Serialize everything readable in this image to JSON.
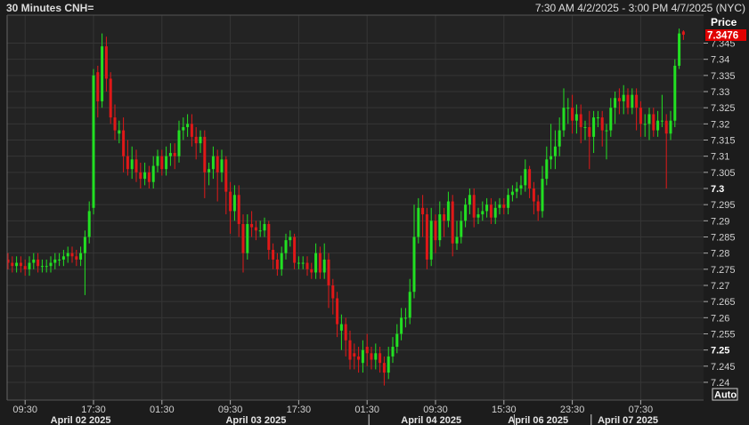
{
  "header": {
    "title": "30 Minutes CNH=",
    "range": "7:30 AM 4/2/2025 - 3:00 PM 4/7/2025 (NYC)"
  },
  "axis": {
    "price_label": "Price",
    "auto_button": "Auto",
    "last_price": "7.3476"
  },
  "colors": {
    "up": "#22e022",
    "down": "#e01818",
    "last_price_bg": "#e00000"
  },
  "chart_data": {
    "type": "candlestick",
    "title": "30 Minutes CNH=",
    "ylabel": "Price",
    "ylim": [
      7.2365,
      7.352
    ],
    "grid": true,
    "y_ticks": [
      "7.345",
      "7.34",
      "7.335",
      "7.33",
      "7.325",
      "7.32",
      "7.315",
      "7.31",
      "7.305",
      "7.3",
      "7.295",
      "7.29",
      "7.285",
      "7.28",
      "7.275",
      "7.27",
      "7.265",
      "7.26",
      "7.255",
      "7.25",
      "7.245",
      "7.24"
    ],
    "y_ticks_bold": [
      "7.3",
      "7.25"
    ],
    "x_ticks": [
      {
        "label": "09:30",
        "index": 4
      },
      {
        "label": "17:30",
        "index": 20
      },
      {
        "label": "01:30",
        "index": 36
      },
      {
        "label": "09:30",
        "index": 52
      },
      {
        "label": "17:30",
        "index": 68
      },
      {
        "label": "01:30",
        "index": 84
      },
      {
        "label": "09:30",
        "index": 100
      },
      {
        "label": "15:30",
        "index": 116
      },
      {
        "label": "23:30",
        "index": 132
      },
      {
        "label": "07:30",
        "index": 148
      }
    ],
    "date_labels": [
      {
        "label": "April 02 2025",
        "index": 17
      },
      {
        "label": "April 03 2025",
        "index": 58
      },
      {
        "label": "April 04 2025",
        "index": 99
      },
      {
        "label": "April 06 2025",
        "index": 124
      },
      {
        "label": "April 07 2025",
        "index": 145
      }
    ],
    "date_separators": [
      84,
      118,
      136
    ],
    "ohlc_columns": [
      "open",
      "high",
      "low",
      "close"
    ],
    "candles": [
      [
        7.278,
        7.28,
        7.275,
        7.277
      ],
      [
        7.277,
        7.279,
        7.274,
        7.276
      ],
      [
        7.276,
        7.279,
        7.274,
        7.277
      ],
      [
        7.277,
        7.279,
        7.274,
        7.276
      ],
      [
        7.276,
        7.278,
        7.273,
        7.275
      ],
      [
        7.275,
        7.279,
        7.273,
        7.277
      ],
      [
        7.277,
        7.28,
        7.275,
        7.278
      ],
      [
        7.278,
        7.28,
        7.274,
        7.276
      ],
      [
        7.276,
        7.278,
        7.274,
        7.276
      ],
      [
        7.276,
        7.278,
        7.274,
        7.276
      ],
      [
        7.276,
        7.279,
        7.274,
        7.277
      ],
      [
        7.277,
        7.28,
        7.275,
        7.278
      ],
      [
        7.278,
        7.28,
        7.276,
        7.278
      ],
      [
        7.278,
        7.281,
        7.276,
        7.279
      ],
      [
        7.279,
        7.282,
        7.277,
        7.28
      ],
      [
        7.28,
        7.282,
        7.277,
        7.279
      ],
      [
        7.279,
        7.281,
        7.276,
        7.278
      ],
      [
        7.278,
        7.282,
        7.276,
        7.28
      ],
      [
        7.28,
        7.287,
        7.267,
        7.285
      ],
      [
        7.285,
        7.296,
        7.283,
        7.293
      ],
      [
        7.294,
        7.337,
        7.292,
        7.335
      ],
      [
        7.336,
        7.338,
        7.322,
        7.327
      ],
      [
        7.327,
        7.348,
        7.325,
        7.344
      ],
      [
        7.344,
        7.347,
        7.33,
        7.334
      ],
      [
        7.334,
        7.336,
        7.32,
        7.322
      ],
      [
        7.322,
        7.326,
        7.315,
        7.318
      ],
      [
        7.317,
        7.321,
        7.314,
        7.318
      ],
      [
        7.318,
        7.322,
        7.305,
        7.31
      ],
      [
        7.31,
        7.315,
        7.304,
        7.306
      ],
      [
        7.306,
        7.313,
        7.303,
        7.309
      ],
      [
        7.309,
        7.312,
        7.302,
        7.305
      ],
      [
        7.305,
        7.308,
        7.3,
        7.303
      ],
      [
        7.303,
        7.308,
        7.301,
        7.305
      ],
      [
        7.305,
        7.307,
        7.3,
        7.302
      ],
      [
        7.302,
        7.31,
        7.3,
        7.307
      ],
      [
        7.307,
        7.312,
        7.305,
        7.31
      ],
      [
        7.31,
        7.312,
        7.304,
        7.306
      ],
      [
        7.306,
        7.313,
        7.304,
        7.31
      ],
      [
        7.31,
        7.314,
        7.307,
        7.311
      ],
      [
        7.311,
        7.314,
        7.306,
        7.31
      ],
      [
        7.31,
        7.321,
        7.308,
        7.318
      ],
      [
        7.318,
        7.322,
        7.315,
        7.319
      ],
      [
        7.319,
        7.323,
        7.316,
        7.32
      ],
      [
        7.32,
        7.323,
        7.313,
        7.316
      ],
      [
        7.316,
        7.319,
        7.309,
        7.314
      ],
      [
        7.314,
        7.318,
        7.311,
        7.316
      ],
      [
        7.316,
        7.318,
        7.297,
        7.305
      ],
      [
        7.305,
        7.308,
        7.301,
        7.306
      ],
      [
        7.306,
        7.313,
        7.303,
        7.31
      ],
      [
        7.31,
        7.312,
        7.296,
        7.305
      ],
      [
        7.305,
        7.312,
        7.302,
        7.309
      ],
      [
        7.309,
        7.31,
        7.292,
        7.299
      ],
      [
        7.299,
        7.302,
        7.286,
        7.293
      ],
      [
        7.293,
        7.301,
        7.29,
        7.298
      ],
      [
        7.298,
        7.301,
        7.285,
        7.289
      ],
      [
        7.289,
        7.292,
        7.274,
        7.28
      ],
      [
        7.28,
        7.292,
        7.278,
        7.289
      ],
      [
        7.289,
        7.293,
        7.285,
        7.288
      ],
      [
        7.288,
        7.29,
        7.284,
        7.287
      ],
      [
        7.287,
        7.29,
        7.285,
        7.287
      ],
      [
        7.287,
        7.291,
        7.285,
        7.289
      ],
      [
        7.289,
        7.29,
        7.278,
        7.281
      ],
      [
        7.281,
        7.283,
        7.275,
        7.278
      ],
      [
        7.278,
        7.28,
        7.273,
        7.275
      ],
      [
        7.275,
        7.282,
        7.273,
        7.28
      ],
      [
        7.28,
        7.286,
        7.278,
        7.284
      ],
      [
        7.284,
        7.287,
        7.282,
        7.285
      ],
      [
        7.285,
        7.286,
        7.275,
        7.277
      ],
      [
        7.277,
        7.279,
        7.275,
        7.277
      ],
      [
        7.277,
        7.279,
        7.275,
        7.277
      ],
      [
        7.277,
        7.279,
        7.273,
        7.275
      ],
      [
        7.275,
        7.277,
        7.272,
        7.274
      ],
      [
        7.274,
        7.283,
        7.272,
        7.28
      ],
      [
        7.28,
        7.282,
        7.272,
        7.274
      ],
      [
        7.274,
        7.283,
        7.272,
        7.278
      ],
      [
        7.278,
        7.28,
        7.263,
        7.27
      ],
      [
        7.27,
        7.272,
        7.261,
        7.266
      ],
      [
        7.266,
        7.268,
        7.254,
        7.258
      ],
      [
        7.256,
        7.261,
        7.25,
        7.258
      ],
      [
        7.258,
        7.26,
        7.248,
        7.253
      ],
      [
        7.253,
        7.256,
        7.244,
        7.247
      ],
      [
        7.249,
        7.252,
        7.244,
        7.248
      ],
      [
        7.248,
        7.251,
        7.243,
        7.247
      ],
      [
        7.246,
        7.253,
        7.243,
        7.25
      ],
      [
        7.251,
        7.255,
        7.245,
        7.249
      ],
      [
        7.249,
        7.251,
        7.244,
        7.247
      ],
      [
        7.247,
        7.252,
        7.244,
        7.249
      ],
      [
        7.249,
        7.251,
        7.243,
        7.246
      ],
      [
        7.246,
        7.248,
        7.239,
        7.243
      ],
      [
        7.243,
        7.251,
        7.241,
        7.248
      ],
      [
        7.248,
        7.254,
        7.246,
        7.251
      ],
      [
        7.251,
        7.258,
        7.249,
        7.255
      ],
      [
        7.255,
        7.263,
        7.253,
        7.26
      ],
      [
        7.26,
        7.263,
        7.257,
        7.26
      ],
      [
        7.26,
        7.272,
        7.258,
        7.268
      ],
      [
        7.268,
        7.295,
        7.266,
        7.285
      ],
      [
        7.285,
        7.297,
        7.283,
        7.294
      ],
      [
        7.294,
        7.298,
        7.285,
        7.292
      ],
      [
        7.292,
        7.294,
        7.275,
        7.278
      ],
      [
        7.278,
        7.294,
        7.276,
        7.29
      ],
      [
        7.29,
        7.292,
        7.28,
        7.284
      ],
      [
        7.284,
        7.296,
        7.282,
        7.292
      ],
      [
        7.292,
        7.294,
        7.285,
        7.29
      ],
      [
        7.29,
        7.299,
        7.288,
        7.296
      ],
      [
        7.296,
        7.298,
        7.279,
        7.283
      ],
      [
        7.283,
        7.29,
        7.281,
        7.285
      ],
      [
        7.285,
        7.293,
        7.283,
        7.29
      ],
      [
        7.29,
        7.297,
        7.288,
        7.295
      ],
      [
        7.295,
        7.3,
        7.292,
        7.298
      ],
      [
        7.298,
        7.3,
        7.288,
        7.291
      ],
      [
        7.291,
        7.294,
        7.289,
        7.292
      ],
      [
        7.292,
        7.296,
        7.29,
        7.293
      ],
      [
        7.293,
        7.297,
        7.291,
        7.295
      ],
      [
        7.295,
        7.297,
        7.289,
        7.291
      ],
      [
        7.291,
        7.296,
        7.289,
        7.294
      ],
      [
        7.294,
        7.297,
        7.292,
        7.295
      ],
      [
        7.295,
        7.297,
        7.292,
        7.294
      ],
      [
        7.294,
        7.3,
        7.292,
        7.298
      ],
      [
        7.298,
        7.301,
        7.296,
        7.299
      ],
      [
        7.299,
        7.302,
        7.297,
        7.3
      ],
      [
        7.3,
        7.304,
        7.298,
        7.301
      ],
      [
        7.301,
        7.309,
        7.299,
        7.306
      ],
      [
        7.306,
        7.307,
        7.297,
        7.3
      ],
      [
        7.3,
        7.302,
        7.292,
        7.296
      ],
      [
        7.296,
        7.298,
        7.29,
        7.293
      ],
      [
        7.293,
        7.307,
        7.291,
        7.303
      ],
      [
        7.303,
        7.313,
        7.301,
        7.309
      ],
      [
        7.309,
        7.32,
        7.306,
        7.31
      ],
      [
        7.31,
        7.318,
        7.306,
        7.313
      ],
      [
        7.313,
        7.322,
        7.31,
        7.318
      ],
      [
        7.318,
        7.331,
        7.316,
        7.325
      ],
      [
        7.325,
        7.328,
        7.32,
        7.325
      ],
      [
        7.325,
        7.329,
        7.317,
        7.321
      ],
      [
        7.321,
        7.326,
        7.317,
        7.323
      ],
      [
        7.323,
        7.326,
        7.314,
        7.319
      ],
      [
        7.319,
        7.321,
        7.315,
        7.319
      ],
      [
        7.319,
        7.324,
        7.306,
        7.316
      ],
      [
        7.316,
        7.324,
        7.311,
        7.322
      ],
      [
        7.322,
        7.324,
        7.319,
        7.322
      ],
      [
        7.322,
        7.324,
        7.313,
        7.318
      ],
      [
        7.318,
        7.32,
        7.309,
        7.318
      ],
      [
        7.318,
        7.328,
        7.316,
        7.325
      ],
      [
        7.325,
        7.33,
        7.32,
        7.328
      ],
      [
        7.328,
        7.331,
        7.323,
        7.327
      ],
      [
        7.327,
        7.332,
        7.323,
        7.329
      ],
      [
        7.329,
        7.331,
        7.323,
        7.325
      ],
      [
        7.325,
        7.331,
        7.323,
        7.329
      ],
      [
        7.329,
        7.331,
        7.318,
        7.325
      ],
      [
        7.325,
        7.327,
        7.316,
        7.32
      ],
      [
        7.32,
        7.323,
        7.316,
        7.32
      ],
      [
        7.32,
        7.325,
        7.315,
        7.323
      ],
      [
        7.323,
        7.325,
        7.316,
        7.318
      ],
      [
        7.318,
        7.324,
        7.316,
        7.321
      ],
      [
        7.321,
        7.329,
        7.319,
        7.321
      ],
      [
        7.321,
        7.323,
        7.3,
        7.317
      ],
      [
        7.317,
        7.324,
        7.315,
        7.321
      ],
      [
        7.321,
        7.34,
        7.319,
        7.338
      ],
      [
        7.338,
        7.3495,
        7.337,
        7.348
      ],
      [
        7.3486,
        7.349,
        7.346,
        7.3476
      ]
    ]
  }
}
